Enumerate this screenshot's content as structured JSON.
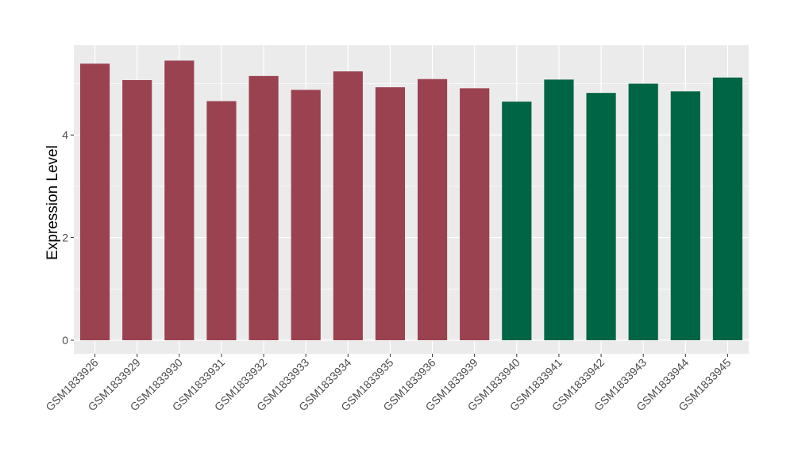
{
  "chart_data": {
    "type": "bar",
    "title": "",
    "xlabel": "",
    "ylabel": "Expression Level",
    "ylim": [
      0,
      5.75
    ],
    "yticks": [
      0,
      2,
      4
    ],
    "grid": true,
    "legend": "none",
    "panel_background": "#ebebeb",
    "grid_color": "#ffffff",
    "categories": [
      "GSM1833926",
      "GSM1833929",
      "GSM1833930",
      "GSM1833931",
      "GSM1833932",
      "GSM1833933",
      "GSM1833934",
      "GSM1833935",
      "GSM1833936",
      "GSM1833939",
      "GSM1833940",
      "GSM1833941",
      "GSM1833942",
      "GSM1833943",
      "GSM1833944",
      "GSM1833945"
    ],
    "values": [
      5.39,
      5.07,
      5.45,
      4.66,
      5.15,
      4.88,
      5.24,
      4.93,
      5.09,
      4.91,
      4.65,
      5.08,
      4.82,
      5.0,
      4.85,
      5.12
    ],
    "colors": [
      "#9a4250",
      "#9a4250",
      "#9a4250",
      "#9a4250",
      "#9a4250",
      "#9a4250",
      "#9a4250",
      "#9a4250",
      "#9a4250",
      "#9a4250",
      "#006544",
      "#006544",
      "#006544",
      "#006544",
      "#006544",
      "#006544"
    ]
  }
}
